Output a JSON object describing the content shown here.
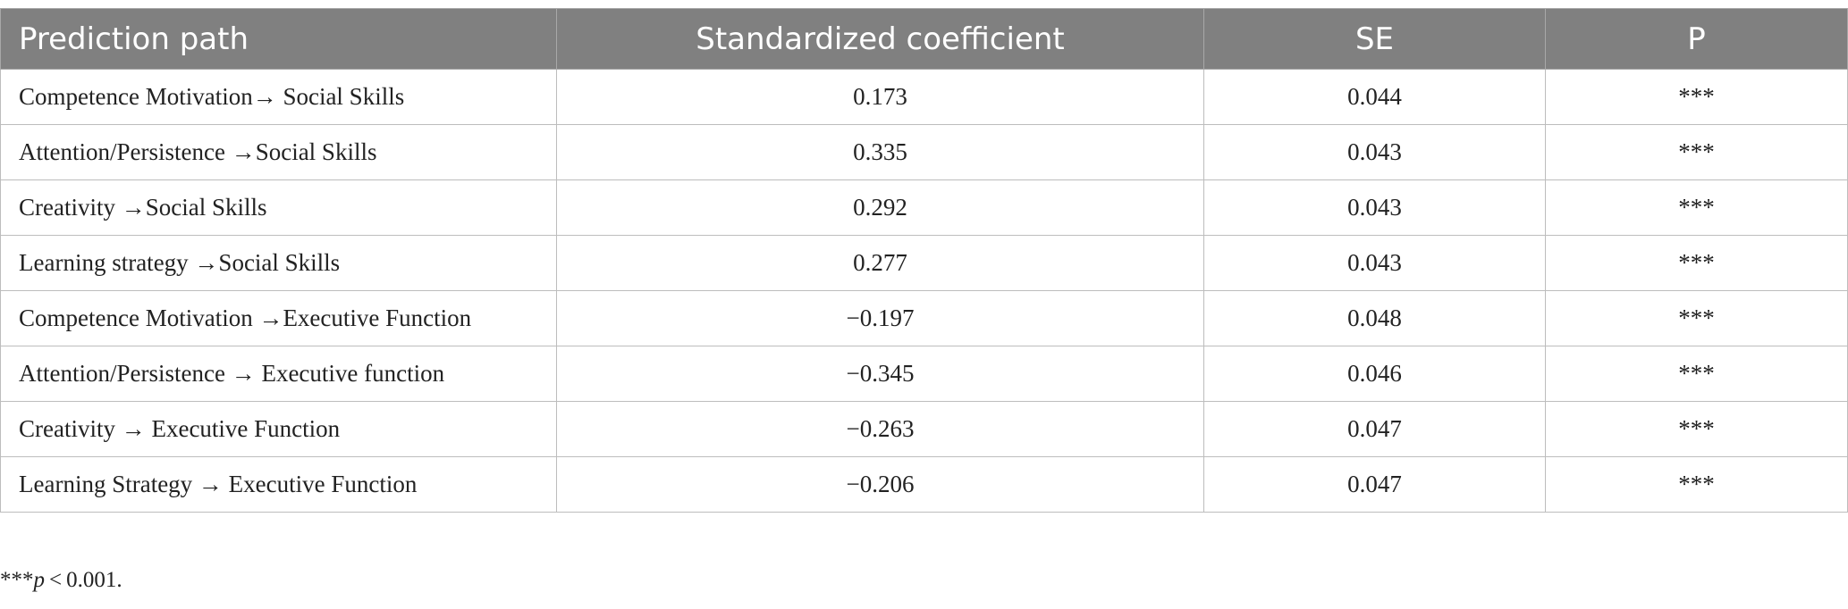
{
  "table": {
    "header": [
      "Prediction path",
      "Standardized coefficient",
      "SE",
      "P"
    ],
    "rows": [
      [
        "Competence Motivation→ Social Skills",
        "0.173",
        "0.044",
        "***"
      ],
      [
        "Attention/Persistence →Social Skills",
        "0.335",
        "0.043",
        "***"
      ],
      [
        "Creativity →Social Skills",
        "0.292",
        "0.043",
        "***"
      ],
      [
        "Learning strategy →Social Skills",
        "0.277",
        "0.043",
        "***"
      ],
      [
        "Competence Motivation →Executive Function",
        "−0.197",
        "0.048",
        "***"
      ],
      [
        "Attention/Persistence → Executive function",
        "−0.345",
        "0.046",
        "***"
      ],
      [
        "Creativity → Executive Function",
        "−0.263",
        "0.047",
        "***"
      ],
      [
        "Learning Strategy → Executive Function",
        "−0.206",
        "0.047",
        "***"
      ]
    ]
  },
  "footnote": {
    "marker": "***",
    "symbol": "p",
    "text": " < 0.001."
  }
}
